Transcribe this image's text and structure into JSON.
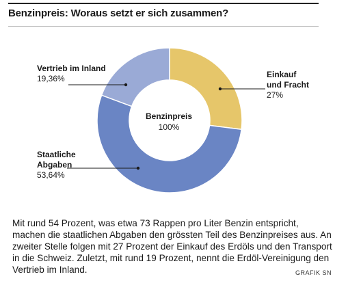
{
  "header": {
    "title": "Benzinpreis: Woraus setzt er sich zusammen?"
  },
  "chart_data": {
    "type": "pie",
    "donut": true,
    "center_label": {
      "name": "Benzinpreis",
      "value": "100%"
    },
    "slices": [
      {
        "name": "Einkauf und Fracht",
        "value": 27,
        "label": "27%",
        "color": "#e6c66a"
      },
      {
        "name": "Staatliche Abgaben",
        "value": 53.64,
        "label": "53,64%",
        "color": "#6a85c4"
      },
      {
        "name": "Vertrieb im Inland",
        "value": 19.36,
        "label": "19,36%",
        "color": "#9aaad6"
      }
    ]
  },
  "labels": {
    "einkauf": {
      "line1": "Einkauf",
      "line2": "und Fracht",
      "pct": "27%"
    },
    "abgaben": {
      "line1": "Staatliche",
      "line2": "Abgaben",
      "pct": "53,64%"
    },
    "vertrieb": {
      "line1": "Vertrieb im Inland",
      "pct": "19,36%"
    }
  },
  "body": {
    "text": "Mit rund 54 Prozent, was etwa 73 Rappen pro Liter Benzin entspricht, machen die staatlichen Abgaben den grössten Teil des Benzinpreises aus. An zweiter Stelle folgen mit 27 Prozent der Einkauf des Erdöls und den Transport in die Schweiz. Zuletzt, mit rund 19 Prozent, nennt die Erdöl-Vereinigung den Vertrieb im Inland."
  },
  "credit": "GRAFIK SN"
}
